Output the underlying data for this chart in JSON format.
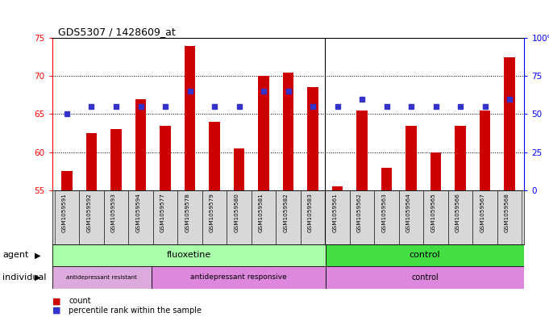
{
  "title": "GDS5307 / 1428609_at",
  "samples": [
    "GSM1059591",
    "GSM1059592",
    "GSM1059593",
    "GSM1059594",
    "GSM1059577",
    "GSM1059578",
    "GSM1059579",
    "GSM1059580",
    "GSM1059581",
    "GSM1059582",
    "GSM1059583",
    "GSM1059561",
    "GSM1059562",
    "GSM1059563",
    "GSM1059564",
    "GSM1059565",
    "GSM1059566",
    "GSM1059567",
    "GSM1059568"
  ],
  "counts": [
    57.5,
    62.5,
    63.0,
    67.0,
    63.5,
    74.0,
    64.0,
    60.5,
    70.0,
    70.5,
    68.5,
    55.5,
    65.5,
    58.0,
    63.5,
    60.0,
    63.5,
    65.5,
    72.5
  ],
  "percentiles": [
    50,
    55,
    55,
    55,
    55,
    65,
    55,
    55,
    65,
    65,
    55,
    55,
    60,
    55,
    55,
    55,
    55,
    55,
    60
  ],
  "ylim_left": [
    55,
    75
  ],
  "ylim_right": [
    0,
    100
  ],
  "yticks_left": [
    55,
    60,
    65,
    70,
    75
  ],
  "yticks_right": [
    0,
    25,
    50,
    75,
    100
  ],
  "bar_color": "#cc0000",
  "dot_color": "#3333cc",
  "plot_bg": "#ffffff",
  "fluox_color": "#aaffaa",
  "ctrl_agent_color": "#44dd44",
  "resist_color": "#ddaadd",
  "responsive_color": "#dd88dd",
  "ctrl_indiv_color": "#dd88dd",
  "n_fluox": 11,
  "n_resist": 4,
  "n_responsive": 7,
  "n_ctrl": 8
}
